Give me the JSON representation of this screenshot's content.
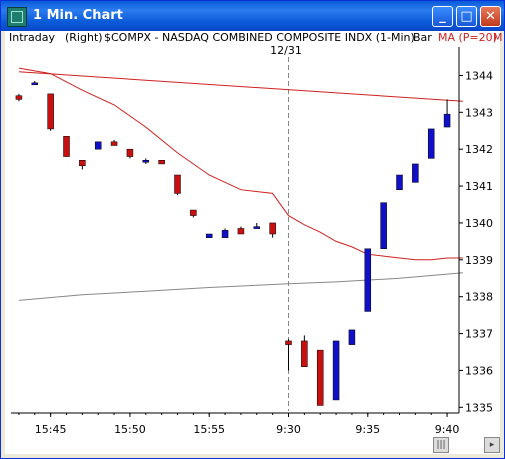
{
  "window": {
    "title": "1 Min. Chart",
    "buttons": {
      "minimize": "_",
      "maximize": "□",
      "close": "✕"
    }
  },
  "header": {
    "mode": "Intraday",
    "axis_side": "(Right)",
    "symbol": "$COMPX - NASDAQ COMBINED COMPOSITE INDX (1-Min)",
    "style": "Bar",
    "indicator": "MA (P=20)",
    "overflow": "M",
    "date_marker": "12/31"
  },
  "colors": {
    "up": "#1010c8",
    "down": "#c81010",
    "ma": "#d02020",
    "gray": "#888888",
    "divider": "#888888"
  },
  "chart_data": {
    "type": "candlestick",
    "ylim": [
      1334.9,
      1344.5
    ],
    "y_ticks": [
      1335,
      1336,
      1337,
      1338,
      1339,
      1340,
      1341,
      1342,
      1343,
      1344
    ],
    "x_ticks": [
      {
        "i": 2,
        "label": "15:45"
      },
      {
        "i": 7,
        "label": "15:50"
      },
      {
        "i": 12,
        "label": "15:55"
      },
      {
        "i": 17,
        "label": "9:30"
      },
      {
        "i": 22,
        "label": "9:35"
      },
      {
        "i": 27,
        "label": "9:40"
      }
    ],
    "divider_index": 17,
    "candles": [
      {
        "o": 1343.45,
        "h": 1343.5,
        "l": 1343.3,
        "c": 1343.35
      },
      {
        "o": 1343.8,
        "h": 1343.85,
        "l": 1343.75,
        "c": 1343.8
      },
      {
        "o": 1343.5,
        "h": 1343.5,
        "l": 1342.5,
        "c": 1342.55
      },
      {
        "o": 1342.35,
        "h": 1342.35,
        "l": 1341.8,
        "c": 1341.8
      },
      {
        "o": 1341.7,
        "h": 1341.7,
        "l": 1341.45,
        "c": 1341.55
      },
      {
        "o": 1342.0,
        "h": 1342.2,
        "l": 1342.0,
        "c": 1342.2
      },
      {
        "o": 1342.2,
        "h": 1342.25,
        "l": 1342.1,
        "c": 1342.1
      },
      {
        "o": 1342.0,
        "h": 1342.0,
        "l": 1341.75,
        "c": 1341.8
      },
      {
        "o": 1341.7,
        "h": 1341.75,
        "l": 1341.6,
        "c": 1341.7
      },
      {
        "o": 1341.7,
        "h": 1341.7,
        "l": 1341.6,
        "c": 1341.6
      },
      {
        "o": 1341.3,
        "h": 1341.3,
        "l": 1340.75,
        "c": 1340.8
      },
      {
        "o": 1340.35,
        "h": 1340.35,
        "l": 1340.15,
        "c": 1340.2
      },
      {
        "o": 1339.6,
        "h": 1339.7,
        "l": 1339.6,
        "c": 1339.7
      },
      {
        "o": 1339.6,
        "h": 1339.85,
        "l": 1339.6,
        "c": 1339.8
      },
      {
        "o": 1339.85,
        "h": 1339.9,
        "l": 1339.7,
        "c": 1339.7
      },
      {
        "o": 1339.9,
        "h": 1340.0,
        "l": 1339.9,
        "c": 1339.9
      },
      {
        "o": 1340.0,
        "h": 1340.0,
        "l": 1339.6,
        "c": 1339.7
      },
      {
        "o": 1336.8,
        "h": 1336.85,
        "l": 1336.0,
        "c": 1336.7
      },
      {
        "o": 1336.8,
        "h": 1336.95,
        "l": 1336.1,
        "c": 1336.1
      },
      {
        "o": 1336.55,
        "h": 1336.55,
        "l": 1335.05,
        "c": 1335.05
      },
      {
        "o": 1335.2,
        "h": 1336.8,
        "l": 1335.2,
        "c": 1336.8
      },
      {
        "o": 1336.7,
        "h": 1337.1,
        "l": 1336.7,
        "c": 1337.1
      },
      {
        "o": 1337.6,
        "h": 1339.3,
        "l": 1337.6,
        "c": 1339.3
      },
      {
        "o": 1339.3,
        "h": 1340.55,
        "l": 1339.3,
        "c": 1340.55
      },
      {
        "o": 1340.9,
        "h": 1341.3,
        "l": 1340.9,
        "c": 1341.3
      },
      {
        "o": 1341.1,
        "h": 1341.6,
        "l": 1341.1,
        "c": 1341.6
      },
      {
        "o": 1341.75,
        "h": 1342.55,
        "l": 1341.75,
        "c": 1342.55
      },
      {
        "o": 1342.6,
        "h": 1343.35,
        "l": 1342.6,
        "c": 1342.95
      }
    ],
    "ma": [
      [
        0,
        1344.2
      ],
      [
        2,
        1344.05
      ],
      [
        4,
        1343.6
      ],
      [
        6,
        1343.2
      ],
      [
        8,
        1342.6
      ],
      [
        10,
        1341.9
      ],
      [
        12,
        1341.3
      ],
      [
        14,
        1340.9
      ],
      [
        16,
        1340.8
      ],
      [
        17,
        1340.2
      ],
      [
        18,
        1339.95
      ],
      [
        19,
        1339.75
      ],
      [
        20,
        1339.5
      ],
      [
        21,
        1339.35
      ],
      [
        22,
        1339.15
      ],
      [
        23,
        1339.1
      ],
      [
        24,
        1339.05
      ],
      [
        25,
        1339.0
      ],
      [
        26,
        1339.0
      ],
      [
        27,
        1339.05
      ],
      [
        28,
        1339.05
      ]
    ],
    "trend_red": [
      [
        0,
        1344.1
      ],
      [
        28,
        1343.3
      ]
    ],
    "trend_gray": [
      [
        0,
        1337.9
      ],
      [
        4,
        1338.05
      ],
      [
        8,
        1338.15
      ],
      [
        12,
        1338.25
      ],
      [
        17,
        1338.35
      ],
      [
        20,
        1338.4
      ],
      [
        24,
        1338.5
      ],
      [
        28,
        1338.65
      ]
    ]
  }
}
